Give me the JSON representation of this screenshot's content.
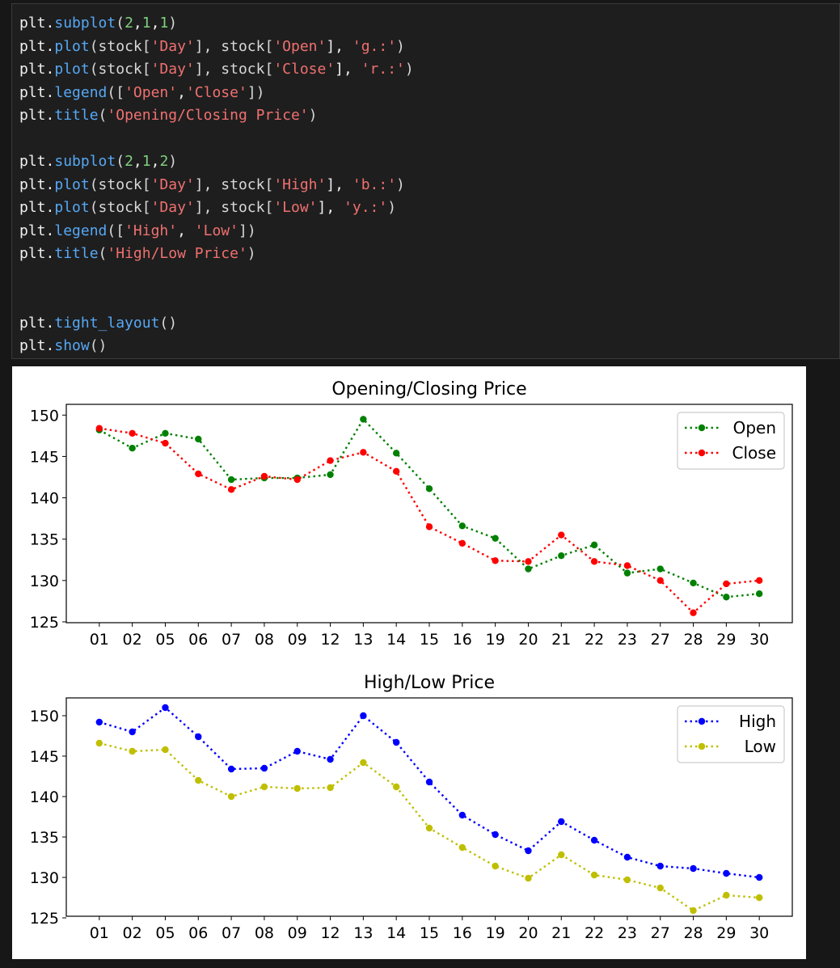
{
  "code_cell": {
    "lines": [
      [
        {
          "t": "plt."
        },
        {
          "t": "subplot",
          "c": "fn"
        },
        {
          "t": "(",
          "c": "br"
        },
        {
          "t": "2",
          "c": "num"
        },
        {
          "t": ","
        },
        {
          "t": "1",
          "c": "num"
        },
        {
          "t": ","
        },
        {
          "t": "1",
          "c": "num"
        },
        {
          "t": ")",
          "c": "br"
        }
      ],
      [
        {
          "t": "plt."
        },
        {
          "t": "plot",
          "c": "fn"
        },
        {
          "t": "(stock[",
          "c": "br"
        },
        {
          "t": "'Day'",
          "c": "str"
        },
        {
          "t": "], stock[",
          "c": "br"
        },
        {
          "t": "'Open'",
          "c": "str"
        },
        {
          "t": "], "
        },
        {
          "t": "'g.:'",
          "c": "str"
        },
        {
          "t": ")",
          "c": "br"
        }
      ],
      [
        {
          "t": "plt."
        },
        {
          "t": "plot",
          "c": "fn"
        },
        {
          "t": "(stock[",
          "c": "br"
        },
        {
          "t": "'Day'",
          "c": "str"
        },
        {
          "t": "], stock[",
          "c": "br"
        },
        {
          "t": "'Close'",
          "c": "str"
        },
        {
          "t": "], "
        },
        {
          "t": "'r.:'",
          "c": "str"
        },
        {
          "t": ")",
          "c": "br"
        }
      ],
      [
        {
          "t": "plt."
        },
        {
          "t": "legend",
          "c": "fn"
        },
        {
          "t": "([",
          "c": "br"
        },
        {
          "t": "'Open'",
          "c": "str"
        },
        {
          "t": ","
        },
        {
          "t": "'Close'",
          "c": "str"
        },
        {
          "t": "])",
          "c": "br"
        }
      ],
      [
        {
          "t": "plt."
        },
        {
          "t": "title",
          "c": "fn"
        },
        {
          "t": "(",
          "c": "br"
        },
        {
          "t": "'Opening/Closing Price'",
          "c": "str"
        },
        {
          "t": ")",
          "c": "br"
        }
      ],
      [],
      [
        {
          "t": "plt."
        },
        {
          "t": "subplot",
          "c": "fn"
        },
        {
          "t": "(",
          "c": "br"
        },
        {
          "t": "2",
          "c": "num"
        },
        {
          "t": ","
        },
        {
          "t": "1",
          "c": "num"
        },
        {
          "t": ","
        },
        {
          "t": "2",
          "c": "num"
        },
        {
          "t": ")",
          "c": "br"
        }
      ],
      [
        {
          "t": "plt."
        },
        {
          "t": "plot",
          "c": "fn"
        },
        {
          "t": "(stock[",
          "c": "br"
        },
        {
          "t": "'Day'",
          "c": "str"
        },
        {
          "t": "], stock[",
          "c": "br"
        },
        {
          "t": "'High'",
          "c": "str"
        },
        {
          "t": "], "
        },
        {
          "t": "'b.:'",
          "c": "str"
        },
        {
          "t": ")",
          "c": "br"
        }
      ],
      [
        {
          "t": "plt."
        },
        {
          "t": "plot",
          "c": "fn"
        },
        {
          "t": "(stock[",
          "c": "br"
        },
        {
          "t": "'Day'",
          "c": "str"
        },
        {
          "t": "], stock[",
          "c": "br"
        },
        {
          "t": "'Low'",
          "c": "str"
        },
        {
          "t": "], "
        },
        {
          "t": "'y.:'",
          "c": "str"
        },
        {
          "t": ")",
          "c": "br"
        }
      ],
      [
        {
          "t": "plt."
        },
        {
          "t": "legend",
          "c": "fn"
        },
        {
          "t": "([",
          "c": "br"
        },
        {
          "t": "'High'",
          "c": "str"
        },
        {
          "t": ", "
        },
        {
          "t": "'Low'",
          "c": "str"
        },
        {
          "t": "])",
          "c": "br"
        }
      ],
      [
        {
          "t": "plt."
        },
        {
          "t": "title",
          "c": "fn"
        },
        {
          "t": "(",
          "c": "br"
        },
        {
          "t": "'High/Low Price'",
          "c": "str"
        },
        {
          "t": ")",
          "c": "br"
        }
      ],
      [],
      [],
      [
        {
          "t": "plt."
        },
        {
          "t": "tight_layout",
          "c": "fn"
        },
        {
          "t": "()",
          "c": "br"
        }
      ],
      [
        {
          "t": "plt."
        },
        {
          "t": "show",
          "c": "fn"
        },
        {
          "t": "()",
          "c": "br"
        }
      ]
    ]
  },
  "colors": {
    "Open": "#008000",
    "Close": "#ff0000",
    "High": "#0000ff",
    "Low": "#bfbf00"
  },
  "chart_data": [
    {
      "type": "line",
      "title": "Opening/Closing Price",
      "categories": [
        "01",
        "02",
        "05",
        "06",
        "07",
        "08",
        "09",
        "12",
        "13",
        "14",
        "15",
        "16",
        "19",
        "20",
        "21",
        "22",
        "23",
        "27",
        "28",
        "29",
        "30"
      ],
      "series": [
        {
          "name": "Open",
          "color": "#008000",
          "values": [
            148.2,
            146.0,
            147.8,
            147.1,
            142.2,
            142.4,
            142.4,
            142.8,
            149.5,
            145.4,
            141.1,
            136.6,
            135.1,
            131.4,
            133.0,
            134.3,
            130.9,
            131.4,
            129.7,
            128.0,
            128.4
          ]
        },
        {
          "name": "Close",
          "color": "#ff0000",
          "values": [
            148.4,
            147.8,
            146.6,
            142.9,
            141.0,
            142.6,
            142.2,
            144.5,
            145.5,
            143.2,
            136.5,
            134.5,
            132.4,
            132.3,
            135.5,
            132.3,
            131.8,
            130.0,
            126.1,
            129.6,
            130.0
          ]
        }
      ],
      "yticks": [
        125,
        130,
        135,
        140,
        145,
        150
      ],
      "ylim": [
        124.9,
        151.3
      ],
      "legend": "upper right"
    },
    {
      "type": "line",
      "title": "High/Low Price",
      "categories": [
        "01",
        "02",
        "05",
        "06",
        "07",
        "08",
        "09",
        "12",
        "13",
        "14",
        "15",
        "16",
        "19",
        "20",
        "21",
        "22",
        "23",
        "27",
        "28",
        "29",
        "30"
      ],
      "series": [
        {
          "name": "High",
          "color": "#0000ff",
          "values": [
            149.2,
            148.0,
            151.0,
            147.4,
            143.4,
            143.5,
            145.6,
            144.6,
            150.0,
            146.7,
            141.8,
            137.7,
            135.3,
            133.3,
            136.9,
            134.6,
            132.5,
            131.4,
            131.1,
            130.5,
            130.0
          ]
        },
        {
          "name": "Low",
          "color": "#bfbf00",
          "values": [
            146.6,
            145.6,
            145.8,
            142.0,
            140.0,
            141.2,
            141.0,
            141.1,
            144.2,
            141.2,
            136.1,
            133.7,
            131.4,
            129.9,
            132.8,
            130.3,
            129.7,
            128.7,
            125.9,
            127.8,
            127.5
          ]
        }
      ],
      "yticks": [
        125,
        130,
        135,
        140,
        145,
        150
      ],
      "ylim": [
        125.2,
        152.2
      ],
      "legend": "upper right"
    }
  ]
}
